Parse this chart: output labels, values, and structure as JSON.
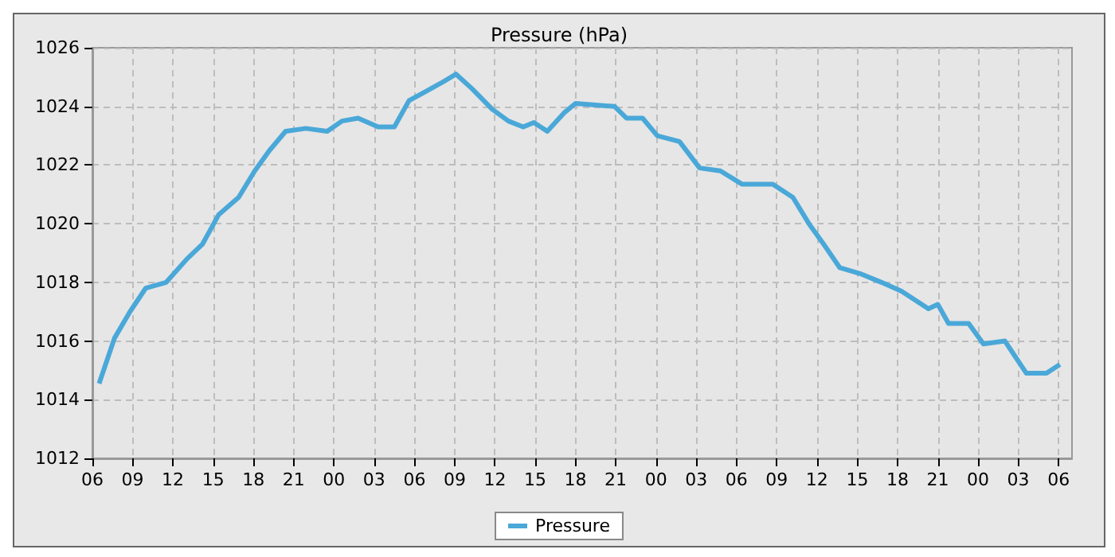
{
  "chart_data": {
    "type": "line",
    "title": "Pressure (hPa)",
    "x": [
      6.5,
      7.65,
      8.8,
      9.97,
      11.5,
      13.05,
      14.2,
      15.4,
      16.9,
      18.1,
      19.2,
      20.4,
      21.9,
      23.5,
      24.6,
      25.8,
      27.3,
      28.5,
      29.6,
      30.8,
      32.0,
      33.1,
      34.3,
      35.8,
      37.0,
      38.1,
      38.9,
      39.9,
      41.2,
      42.0,
      44.9,
      45.8,
      47.0,
      48.1,
      49.75,
      51.25,
      52.8,
      54.4,
      56.7,
      58.2,
      59.4,
      60.5,
      61.7,
      63.2,
      64.8,
      66.3,
      68.3,
      69.0,
      69.8,
      71.3,
      72.4,
      74.0,
      75.6,
      77.1,
      78.1
    ],
    "series": [
      {
        "name": "Pressure",
        "color": "#4aa8d8",
        "values": [
          1014.55,
          1016.1,
          1017.0,
          1017.8,
          1018.0,
          1018.8,
          1019.3,
          1020.3,
          1020.9,
          1021.8,
          1022.5,
          1023.15,
          1023.25,
          1023.15,
          1023.5,
          1023.6,
          1023.3,
          1023.3,
          1024.2,
          1024.5,
          1024.8,
          1025.1,
          1024.6,
          1023.9,
          1023.5,
          1023.3,
          1023.45,
          1023.15,
          1023.8,
          1024.1,
          1024.0,
          1023.6,
          1023.6,
          1023.0,
          1022.8,
          1021.9,
          1021.8,
          1021.35,
          1021.35,
          1020.9,
          1020.0,
          1019.3,
          1018.5,
          1018.3,
          1018.0,
          1017.7,
          1017.1,
          1017.25,
          1016.6,
          1016.6,
          1015.9,
          1016.0,
          1014.9,
          1014.9,
          1015.2
        ]
      }
    ],
    "xlim": [
      6,
      79
    ],
    "xticks": [
      {
        "value": 6,
        "label": "06"
      },
      {
        "value": 9,
        "label": "09"
      },
      {
        "value": 12,
        "label": "12"
      },
      {
        "value": 15,
        "label": "15"
      },
      {
        "value": 18,
        "label": "18"
      },
      {
        "value": 21,
        "label": "21"
      },
      {
        "value": 24,
        "label": "00"
      },
      {
        "value": 27,
        "label": "03"
      },
      {
        "value": 30,
        "label": "06"
      },
      {
        "value": 33,
        "label": "09"
      },
      {
        "value": 36,
        "label": "12"
      },
      {
        "value": 39,
        "label": "15"
      },
      {
        "value": 42,
        "label": "18"
      },
      {
        "value": 45,
        "label": "21"
      },
      {
        "value": 48,
        "label": "00"
      },
      {
        "value": 51,
        "label": "03"
      },
      {
        "value": 54,
        "label": "06"
      },
      {
        "value": 57,
        "label": "09"
      },
      {
        "value": 60,
        "label": "12"
      },
      {
        "value": 63,
        "label": "15"
      },
      {
        "value": 66,
        "label": "18"
      },
      {
        "value": 69,
        "label": "21"
      },
      {
        "value": 72,
        "label": "00"
      },
      {
        "value": 75,
        "label": "03"
      },
      {
        "value": 78,
        "label": "06"
      }
    ],
    "ylim": [
      1012,
      1026
    ],
    "yticks": [
      1012,
      1014,
      1016,
      1018,
      1020,
      1022,
      1024,
      1026
    ],
    "grid": true,
    "legend": "bottom",
    "marker": "none",
    "line_style": "solid"
  }
}
